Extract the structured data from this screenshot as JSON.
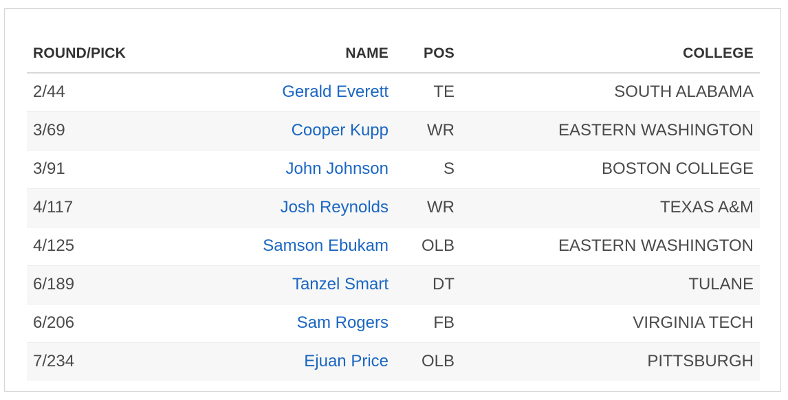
{
  "headers": {
    "round_pick": "ROUND/PICK",
    "name": "NAME",
    "pos": "POS",
    "college": "COLLEGE"
  },
  "colors": {
    "link": "#1a66c2",
    "text": "#4a4a4a",
    "header": "#333333",
    "stripe": "#f7f7f7"
  },
  "rows": [
    {
      "round_pick": "2/44",
      "name": "Gerald Everett",
      "pos": "TE",
      "college": "SOUTH ALABAMA"
    },
    {
      "round_pick": "3/69",
      "name": "Cooper Kupp",
      "pos": "WR",
      "college": "EASTERN WASHINGTON"
    },
    {
      "round_pick": "3/91",
      "name": "John Johnson",
      "pos": "S",
      "college": "BOSTON COLLEGE"
    },
    {
      "round_pick": "4/117",
      "name": "Josh Reynolds",
      "pos": "WR",
      "college": "TEXAS A&M"
    },
    {
      "round_pick": "4/125",
      "name": "Samson Ebukam",
      "pos": "OLB",
      "college": "EASTERN WASHINGTON"
    },
    {
      "round_pick": "6/189",
      "name": "Tanzel Smart",
      "pos": "DT",
      "college": "TULANE"
    },
    {
      "round_pick": "6/206",
      "name": "Sam Rogers",
      "pos": "FB",
      "college": "VIRGINIA TECH"
    },
    {
      "round_pick": "7/234",
      "name": "Ejuan Price",
      "pos": "OLB",
      "college": "PITTSBURGH"
    }
  ]
}
